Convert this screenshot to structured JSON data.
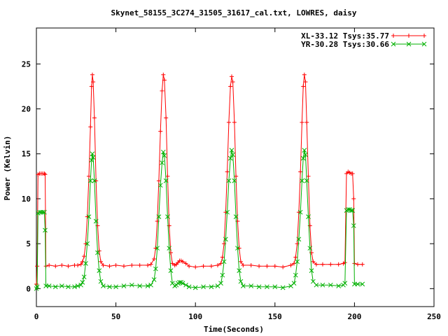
{
  "chart_data": {
    "type": "line",
    "title": "Skynet_58155_3C274_31505_31617_cal.txt, LOWRES, daisy",
    "xlabel": "Time(Seconds)",
    "ylabel": "Power (Kelvin)",
    "xlim": [
      0,
      250
    ],
    "ylim": [
      -2,
      29
    ],
    "xticks": [
      0,
      50,
      100,
      150,
      200,
      250
    ],
    "xtick_labels": [
      "0",
      "50",
      "100",
      "150",
      "200",
      "250"
    ],
    "yticks": [
      0,
      5,
      10,
      15,
      20,
      25
    ],
    "ytick_labels": [
      "0",
      "5",
      "10",
      "15",
      "20",
      "25"
    ],
    "grid": false,
    "legend_position": "top-right",
    "series": [
      {
        "name": "XL-33.12 Tsys:35.77",
        "color": "#ff0000",
        "marker": "plus",
        "points": [
          [
            0,
            0.5
          ],
          [
            0.5,
            2.5
          ],
          [
            1,
            12.7
          ],
          [
            2,
            12.8
          ],
          [
            3,
            12.8
          ],
          [
            4,
            12.8
          ],
          [
            5,
            12.8
          ],
          [
            5.5,
            12.7
          ],
          [
            6,
            2.5
          ],
          [
            8,
            2.6
          ],
          [
            12,
            2.5
          ],
          [
            16,
            2.6
          ],
          [
            20,
            2.5
          ],
          [
            24,
            2.6
          ],
          [
            26,
            2.6
          ],
          [
            28,
            2.7
          ],
          [
            29,
            3.0
          ],
          [
            30,
            3.6
          ],
          [
            31,
            5.0
          ],
          [
            32,
            8.0
          ],
          [
            33,
            12.5
          ],
          [
            34,
            18.0
          ],
          [
            34.7,
            22.5
          ],
          [
            35.2,
            23.8
          ],
          [
            35.7,
            23.0
          ],
          [
            36.5,
            19.0
          ],
          [
            37.5,
            12.0
          ],
          [
            38.5,
            7.0
          ],
          [
            39.5,
            4.2
          ],
          [
            40.5,
            3.0
          ],
          [
            42,
            2.6
          ],
          [
            46,
            2.5
          ],
          [
            50,
            2.6
          ],
          [
            55,
            2.5
          ],
          [
            60,
            2.6
          ],
          [
            65,
            2.6
          ],
          [
            70,
            2.6
          ],
          [
            72,
            2.7
          ],
          [
            74,
            3.3
          ],
          [
            75,
            4.5
          ],
          [
            76,
            7.5
          ],
          [
            77,
            12.0
          ],
          [
            78,
            17.5
          ],
          [
            79,
            22.0
          ],
          [
            79.8,
            23.8
          ],
          [
            80.5,
            23.2
          ],
          [
            81.5,
            19.0
          ],
          [
            82.5,
            12.5
          ],
          [
            83.5,
            7.0
          ],
          [
            84.5,
            4.0
          ],
          [
            85.5,
            2.8
          ],
          [
            87,
            2.6
          ],
          [
            88,
            2.7
          ],
          [
            89,
            2.9
          ],
          [
            90,
            3.1
          ],
          [
            91,
            3.1
          ],
          [
            92,
            3.0
          ],
          [
            94,
            2.8
          ],
          [
            96,
            2.5
          ],
          [
            100,
            2.4
          ],
          [
            105,
            2.5
          ],
          [
            110,
            2.5
          ],
          [
            114,
            2.6
          ],
          [
            116,
            2.8
          ],
          [
            117,
            3.5
          ],
          [
            118,
            5.0
          ],
          [
            119,
            8.5
          ],
          [
            120,
            13.0
          ],
          [
            121,
            18.5
          ],
          [
            122,
            22.5
          ],
          [
            122.8,
            23.6
          ],
          [
            123.5,
            23.0
          ],
          [
            124.5,
            18.5
          ],
          [
            125.5,
            12.5
          ],
          [
            126.5,
            7.5
          ],
          [
            127.5,
            4.5
          ],
          [
            128.5,
            3.0
          ],
          [
            130,
            2.6
          ],
          [
            135,
            2.6
          ],
          [
            140,
            2.5
          ],
          [
            145,
            2.5
          ],
          [
            150,
            2.5
          ],
          [
            155,
            2.4
          ],
          [
            160,
            2.6
          ],
          [
            162,
            2.8
          ],
          [
            163,
            3.5
          ],
          [
            164,
            5.0
          ],
          [
            165,
            8.5
          ],
          [
            166,
            13.0
          ],
          [
            167,
            18.5
          ],
          [
            167.8,
            22.5
          ],
          [
            168.5,
            23.8
          ],
          [
            169.2,
            23.0
          ],
          [
            170,
            18.5
          ],
          [
            171,
            12.5
          ],
          [
            172,
            7.0
          ],
          [
            173,
            4.0
          ],
          [
            174,
            3.0
          ],
          [
            176,
            2.7
          ],
          [
            180,
            2.7
          ],
          [
            185,
            2.7
          ],
          [
            190,
            2.7
          ],
          [
            193,
            2.8
          ],
          [
            194,
            2.9
          ],
          [
            195,
            12.8
          ],
          [
            196,
            13.0
          ],
          [
            197,
            12.9
          ],
          [
            198,
            12.8
          ],
          [
            198.8,
            12.8
          ],
          [
            199.5,
            10.0
          ],
          [
            200,
            2.8
          ],
          [
            202,
            2.7
          ],
          [
            205,
            2.7
          ]
        ]
      },
      {
        "name": "YR-30.28 Tsys:30.66",
        "color": "#00b000",
        "marker": "cross",
        "points": [
          [
            0,
            0.0
          ],
          [
            0.5,
            0.2
          ],
          [
            1,
            8.4
          ],
          [
            2,
            8.5
          ],
          [
            3,
            8.5
          ],
          [
            4,
            8.5
          ],
          [
            5,
            8.5
          ],
          [
            5.5,
            6.5
          ],
          [
            6,
            0.3
          ],
          [
            8,
            0.3
          ],
          [
            12,
            0.2
          ],
          [
            16,
            0.3
          ],
          [
            20,
            0.2
          ],
          [
            24,
            0.2
          ],
          [
            26,
            0.3
          ],
          [
            28,
            0.4
          ],
          [
            29,
            0.7
          ],
          [
            30,
            1.3
          ],
          [
            31,
            2.8
          ],
          [
            32,
            5.0
          ],
          [
            33,
            8.0
          ],
          [
            34,
            12.0
          ],
          [
            34.7,
            14.3
          ],
          [
            35.2,
            15.0
          ],
          [
            35.7,
            14.6
          ],
          [
            36.5,
            12.0
          ],
          [
            37.5,
            7.5
          ],
          [
            38.5,
            4.0
          ],
          [
            39.5,
            2.0
          ],
          [
            40.5,
            0.8
          ],
          [
            42,
            0.3
          ],
          [
            46,
            0.2
          ],
          [
            50,
            0.2
          ],
          [
            55,
            0.3
          ],
          [
            60,
            0.4
          ],
          [
            65,
            0.3
          ],
          [
            70,
            0.3
          ],
          [
            72,
            0.4
          ],
          [
            74,
            1.0
          ],
          [
            75,
            2.2
          ],
          [
            76,
            4.5
          ],
          [
            77,
            8.0
          ],
          [
            78,
            11.5
          ],
          [
            79,
            14.0
          ],
          [
            79.8,
            15.2
          ],
          [
            80.5,
            14.8
          ],
          [
            81.5,
            12.0
          ],
          [
            82.5,
            8.0
          ],
          [
            83.5,
            4.5
          ],
          [
            84.5,
            2.0
          ],
          [
            85.5,
            0.6
          ],
          [
            87,
            0.3
          ],
          [
            88,
            0.4
          ],
          [
            89,
            0.6
          ],
          [
            90,
            0.7
          ],
          [
            91,
            0.7
          ],
          [
            92,
            0.6
          ],
          [
            94,
            0.4
          ],
          [
            96,
            0.2
          ],
          [
            100,
            0.1
          ],
          [
            105,
            0.2
          ],
          [
            110,
            0.2
          ],
          [
            114,
            0.3
          ],
          [
            116,
            0.6
          ],
          [
            117,
            1.5
          ],
          [
            118,
            3.0
          ],
          [
            119,
            5.5
          ],
          [
            120,
            8.5
          ],
          [
            121,
            12.0
          ],
          [
            122,
            14.5
          ],
          [
            122.8,
            15.4
          ],
          [
            123.5,
            14.9
          ],
          [
            124.5,
            12.0
          ],
          [
            125.5,
            8.0
          ],
          [
            126.5,
            4.5
          ],
          [
            127.5,
            2.0
          ],
          [
            128.5,
            0.8
          ],
          [
            130,
            0.3
          ],
          [
            135,
            0.3
          ],
          [
            140,
            0.2
          ],
          [
            145,
            0.2
          ],
          [
            150,
            0.2
          ],
          [
            155,
            0.1
          ],
          [
            160,
            0.3
          ],
          [
            162,
            0.6
          ],
          [
            163,
            1.5
          ],
          [
            164,
            3.0
          ],
          [
            165,
            5.5
          ],
          [
            166,
            8.5
          ],
          [
            167,
            12.0
          ],
          [
            167.8,
            14.5
          ],
          [
            168.5,
            15.4
          ],
          [
            169.2,
            14.9
          ],
          [
            170,
            12.0
          ],
          [
            171,
            8.0
          ],
          [
            172,
            4.5
          ],
          [
            173,
            2.0
          ],
          [
            174,
            0.8
          ],
          [
            176,
            0.4
          ],
          [
            180,
            0.4
          ],
          [
            185,
            0.4
          ],
          [
            190,
            0.3
          ],
          [
            193,
            0.4
          ],
          [
            194,
            0.6
          ],
          [
            195,
            8.7
          ],
          [
            196,
            8.8
          ],
          [
            197,
            8.8
          ],
          [
            198,
            8.7
          ],
          [
            198.8,
            8.7
          ],
          [
            199.5,
            7.0
          ],
          [
            200,
            0.5
          ],
          [
            202,
            0.5
          ],
          [
            205,
            0.5
          ]
        ]
      }
    ]
  }
}
